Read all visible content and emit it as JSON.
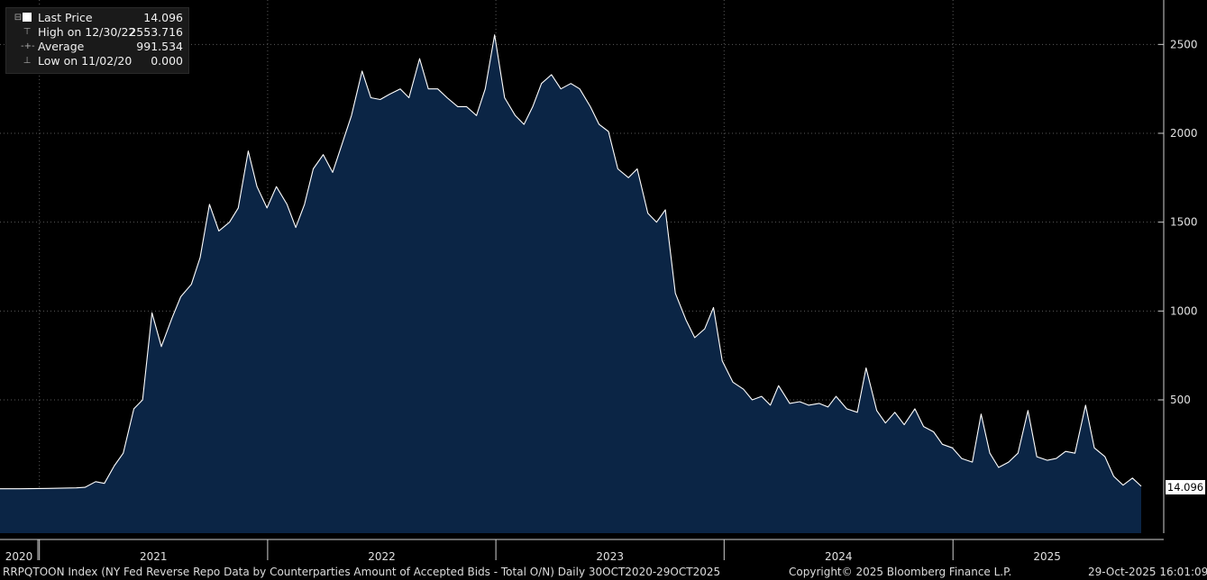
{
  "legend": {
    "last_price_label": "Last Price",
    "last_price_value": "14.096",
    "high_label": "High on 12/30/22",
    "high_value": "2553.716",
    "average_label": "Average",
    "average_value": "991.534",
    "low_label": "Low on 11/02/20",
    "low_value": "0.000"
  },
  "last_value_tag": "14.096",
  "footer": {
    "left": "RRPQTOON Index (NY Fed Reverse Repo Data by Counterparties Amount of Accepted Bids - Total O/N) Daily 30OCT2020-29OCT2025",
    "center": "Copyright© 2025 Bloomberg Finance L.P.",
    "right": "29-Oct-2025 16:01:09"
  },
  "colors": {
    "background": "#000000",
    "area_fill": "#0b2545",
    "line": "#ffffff",
    "grid": "#5a5a5a"
  },
  "chart_data": {
    "type": "area",
    "title": "",
    "xlabel": "",
    "ylabel": "",
    "ylim": [
      -250,
      2750
    ],
    "y_ticks": [
      500,
      1000,
      1500,
      2000,
      2500
    ],
    "x_tick_labels": [
      "2020",
      "2021",
      "2022",
      "2023",
      "2024",
      "2025"
    ],
    "x_range": [
      "2020-10-30",
      "2025-10-29"
    ],
    "grid": true,
    "legend_position": "top-left",
    "series": [
      {
        "name": "Last Price",
        "x": [
          "2020-10-30",
          "2020-12-01",
          "2021-01-15",
          "2021-03-01",
          "2021-03-15",
          "2021-04-01",
          "2021-04-15",
          "2021-05-01",
          "2021-05-15",
          "2021-06-01",
          "2021-06-15",
          "2021-06-30",
          "2021-07-15",
          "2021-08-01",
          "2021-08-15",
          "2021-09-01",
          "2021-09-15",
          "2021-09-30",
          "2021-10-15",
          "2021-11-01",
          "2021-11-15",
          "2021-12-01",
          "2021-12-15",
          "2021-12-31",
          "2022-01-15",
          "2022-02-01",
          "2022-02-15",
          "2022-03-01",
          "2022-03-15",
          "2022-03-31",
          "2022-04-15",
          "2022-05-01",
          "2022-05-15",
          "2022-06-01",
          "2022-06-15",
          "2022-06-30",
          "2022-07-15",
          "2022-08-01",
          "2022-08-15",
          "2022-09-01",
          "2022-09-15",
          "2022-09-30",
          "2022-10-15",
          "2022-11-01",
          "2022-11-15",
          "2022-12-01",
          "2022-12-15",
          "2022-12-30",
          "2023-01-15",
          "2023-02-01",
          "2023-02-15",
          "2023-03-01",
          "2023-03-15",
          "2023-03-31",
          "2023-04-15",
          "2023-05-01",
          "2023-05-15",
          "2023-06-01",
          "2023-06-15",
          "2023-06-30",
          "2023-07-15",
          "2023-08-01",
          "2023-08-15",
          "2023-09-01",
          "2023-09-15",
          "2023-09-29",
          "2023-10-15",
          "2023-11-01",
          "2023-11-15",
          "2023-12-01",
          "2023-12-15",
          "2023-12-29",
          "2024-01-15",
          "2024-02-01",
          "2024-02-15",
          "2024-03-01",
          "2024-03-15",
          "2024-03-28",
          "2024-04-15",
          "2024-05-01",
          "2024-05-15",
          "2024-06-01",
          "2024-06-15",
          "2024-06-28",
          "2024-07-15",
          "2024-08-01",
          "2024-08-15",
          "2024-09-01",
          "2024-09-15",
          "2024-09-30",
          "2024-10-15",
          "2024-11-01",
          "2024-11-15",
          "2024-12-01",
          "2024-12-15",
          "2024-12-31",
          "2025-01-15",
          "2025-02-01",
          "2025-02-15",
          "2025-03-01",
          "2025-03-15",
          "2025-03-31",
          "2025-04-15",
          "2025-05-01",
          "2025-05-15",
          "2025-06-01",
          "2025-06-15",
          "2025-06-30",
          "2025-07-15",
          "2025-08-01",
          "2025-08-15",
          "2025-09-01",
          "2025-09-15",
          "2025-09-30",
          "2025-10-15",
          "2025-10-29"
        ],
        "y": [
          0,
          0,
          2,
          5,
          8,
          40,
          30,
          130,
          200,
          450,
          500,
          990,
          800,
          960,
          1080,
          1150,
          1300,
          1600,
          1450,
          1500,
          1580,
          1900,
          1700,
          1580,
          1700,
          1600,
          1470,
          1600,
          1800,
          1880,
          1780,
          1950,
          2100,
          2350,
          2200,
          2190,
          2220,
          2250,
          2200,
          2420,
          2250,
          2250,
          2200,
          2150,
          2150,
          2100,
          2250,
          2554,
          2200,
          2100,
          2050,
          2150,
          2280,
          2330,
          2250,
          2280,
          2250,
          2150,
          2050,
          2010,
          1800,
          1750,
          1800,
          1550,
          1500,
          1570,
          1100,
          950,
          850,
          900,
          1020,
          720,
          600,
          560,
          500,
          520,
          470,
          580,
          480,
          490,
          470,
          480,
          460,
          520,
          450,
          430,
          680,
          440,
          370,
          430,
          360,
          450,
          350,
          320,
          250,
          230,
          170,
          150,
          420,
          200,
          120,
          150,
          200,
          440,
          180,
          160,
          170,
          210,
          200,
          470,
          230,
          180,
          70,
          20,
          60,
          14.096
        ]
      }
    ]
  }
}
